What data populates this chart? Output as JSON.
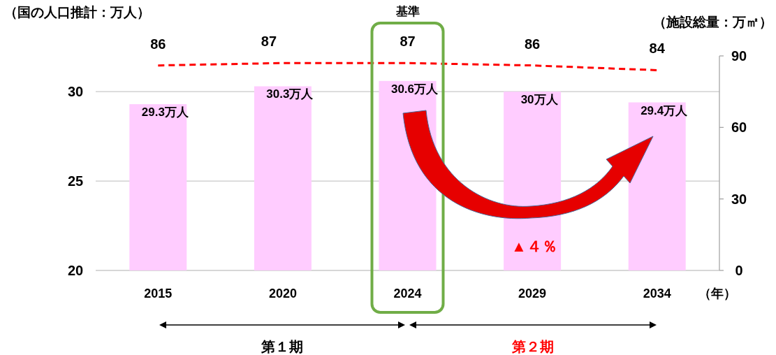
{
  "chart_data": {
    "type": "bar",
    "ylabel": "（国の人口推計：万人）",
    "y2label": "（施設総量：万㎡）",
    "xlabel": "（年）",
    "categories": [
      "2015",
      "2020",
      "2024",
      "2029",
      "2034"
    ],
    "series": [
      {
        "color": "#ffccff",
        "values": [
          29.3,
          30.3,
          30.6,
          30,
          29.4
        ],
        "value_labels": [
          "29.3万人",
          "30.3万人",
          "30.6万人",
          "30万人",
          "29.4万人"
        ]
      },
      {
        "type": "line",
        "axis": "y2",
        "color": "#ff0000",
        "line_style": "dashed",
        "values": [
          86,
          87,
          87,
          86,
          84
        ],
        "value_labels": [
          "86",
          "87",
          "87",
          "86",
          "84"
        ]
      }
    ],
    "ylim": [
      20,
      32
    ],
    "yticks": [
      20,
      25,
      30
    ],
    "y2lim": [
      0,
      90
    ],
    "y2ticks": [
      0,
      30,
      60,
      90
    ],
    "grid": "y",
    "annotations": [
      "基準",
      "▲４％",
      "第１期",
      "第２期"
    ]
  }
}
